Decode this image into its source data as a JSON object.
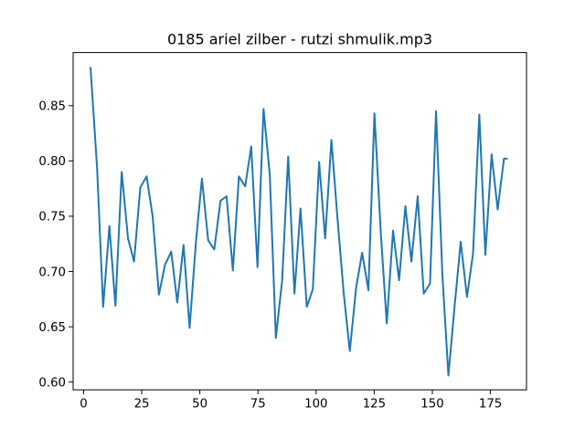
{
  "chart_data": {
    "type": "line",
    "title": "0185 ariel zilber - rutzi shmulik.mp3",
    "xlabel": "",
    "ylabel": "",
    "xlim": [
      -4.5,
      190.5
    ],
    "ylim": [
      0.593,
      0.898
    ],
    "xticks": [
      0,
      25,
      50,
      75,
      100,
      125,
      150,
      175
    ],
    "xtick_labels": [
      "0",
      "25",
      "50",
      "75",
      "100",
      "125",
      "150",
      "175"
    ],
    "yticks": [
      0.6,
      0.65,
      0.7,
      0.75,
      0.8,
      0.85
    ],
    "ytick_labels": [
      "0.60",
      "0.65",
      "0.70",
      "0.75",
      "0.80",
      "0.85"
    ],
    "grid": false,
    "legend": false,
    "series": [
      {
        "color": "#1f77b4",
        "x": [
          3,
          5.8,
          8.4,
          11.1,
          13.7,
          16.4,
          19.1,
          21.7,
          24.4,
          27.1,
          29.7,
          32.4,
          35,
          37.7,
          40.3,
          43,
          45.6,
          48.3,
          50.9,
          53.6,
          56.2,
          58.9,
          61.5,
          64.2,
          66.8,
          69.5,
          72.1,
          74.8,
          77.4,
          80.1,
          82.7,
          85.4,
          88,
          90.7,
          93.3,
          96,
          98.6,
          101.3,
          103.9,
          106.6,
          109.2,
          111.9,
          114.5,
          117.2,
          119.8,
          122.5,
          125.1,
          127.8,
          130.4,
          133.1,
          135.7,
          138.4,
          141,
          143.7,
          146.3,
          149,
          151.6,
          154.3,
          156.9,
          159.6,
          162.2,
          164.9,
          167.5,
          170.2,
          172.8,
          175.5,
          178.1,
          180.8,
          182
        ],
        "y": [
          0.884,
          0.794,
          0.668,
          0.741,
          0.669,
          0.79,
          0.73,
          0.709,
          0.776,
          0.786,
          0.75,
          0.679,
          0.706,
          0.718,
          0.672,
          0.724,
          0.649,
          0.726,
          0.784,
          0.728,
          0.72,
          0.764,
          0.768,
          0.701,
          0.786,
          0.777,
          0.813,
          0.704,
          0.847,
          0.787,
          0.64,
          0.692,
          0.804,
          0.68,
          0.757,
          0.668,
          0.684,
          0.799,
          0.73,
          0.819,
          0.748,
          0.68,
          0.628,
          0.685,
          0.717,
          0.683,
          0.843,
          0.736,
          0.653,
          0.737,
          0.692,
          0.759,
          0.709,
          0.768,
          0.68,
          0.689,
          0.845,
          0.698,
          0.606,
          0.669,
          0.727,
          0.677,
          0.716,
          0.842,
          0.715,
          0.806,
          0.756,
          0.802,
          0.802
        ]
      }
    ]
  }
}
